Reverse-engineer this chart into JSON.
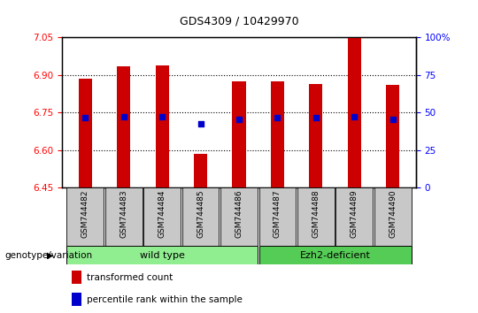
{
  "title": "GDS4309 / 10429970",
  "samples": [
    "GSM744482",
    "GSM744483",
    "GSM744484",
    "GSM744485",
    "GSM744486",
    "GSM744487",
    "GSM744488",
    "GSM744489",
    "GSM744490"
  ],
  "transformed_counts": [
    6.885,
    6.935,
    6.94,
    6.585,
    6.875,
    6.875,
    6.865,
    7.05,
    6.86
  ],
  "percentile_ranks_val": [
    6.73,
    6.735,
    6.735,
    6.705,
    6.725,
    6.73,
    6.73,
    6.735,
    6.725
  ],
  "ylim_left": [
    6.45,
    7.05
  ],
  "yticks_left": [
    6.45,
    6.6,
    6.75,
    6.9,
    7.05
  ],
  "yticks_right": [
    0,
    25,
    50,
    75,
    100
  ],
  "ylim_right": [
    0,
    100
  ],
  "bar_color": "#CC0000",
  "dot_color": "#0000CC",
  "bar_bottom": 6.45,
  "wt_color": "#90EE90",
  "ez_color": "#55CC55",
  "label_bg": "#C8C8C8",
  "genotype_label": "genotype/variation"
}
